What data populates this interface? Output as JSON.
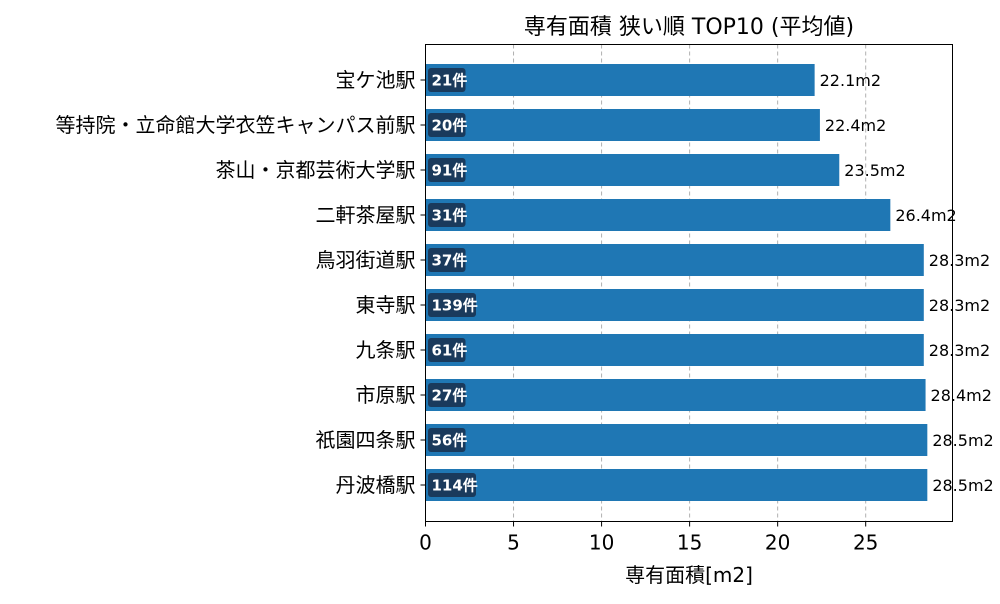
{
  "chart_data": {
    "type": "bar",
    "orientation": "horizontal",
    "title": "専有面積 狭い順 TOP10 (平均値)",
    "xlabel": "専有面積[m2]",
    "ylabel": "",
    "xlim": [
      0,
      30
    ],
    "xticks": [
      0,
      5,
      10,
      15,
      20,
      25
    ],
    "grid": "x-dashed",
    "bar_color": "#1f77b4",
    "count_badge_color": "#1a3a5c",
    "categories": [
      "宝ケ池駅",
      "等持院・立命館大学衣笠キャンパス前駅",
      "茶山・京都芸術大学駅",
      "二軒茶屋駅",
      "鳥羽街道駅",
      "東寺駅",
      "九条駅",
      "市原駅",
      "祇園四条駅",
      "丹波橋駅"
    ],
    "values": [
      22.1,
      22.4,
      23.5,
      26.4,
      28.3,
      28.3,
      28.3,
      28.4,
      28.5,
      28.5
    ],
    "value_labels": [
      "22.1m2",
      "22.4m2",
      "23.5m2",
      "26.4m2",
      "28.3m2",
      "28.3m2",
      "28.3m2",
      "28.4m2",
      "28.5m2",
      "28.5m2"
    ],
    "count_labels": [
      "21件",
      "20件",
      "91件",
      "31件",
      "37件",
      "139件",
      "61件",
      "27件",
      "56件",
      "114件"
    ]
  }
}
